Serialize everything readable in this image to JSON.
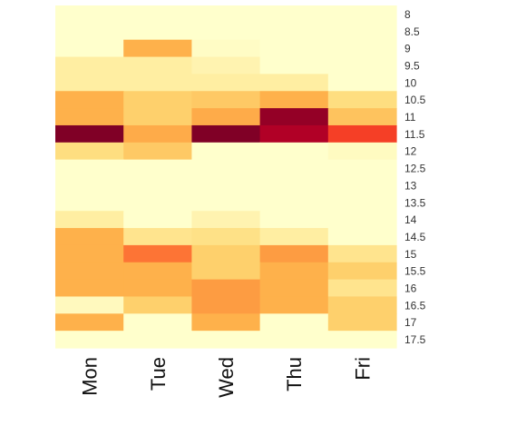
{
  "chart_data": {
    "type": "heatmap",
    "title": "",
    "xlabel": "",
    "ylabel": "",
    "x_categories": [
      "Mon",
      "Tue",
      "Wed",
      "Thu",
      "Fri"
    ],
    "y_categories": [
      "8",
      "8.5",
      "9",
      "9.5",
      "10",
      "10.5",
      "11",
      "11.5",
      "12",
      "12.5",
      "13",
      "13.5",
      "14",
      "14.5",
      "15",
      "15.5",
      "16",
      "16.5",
      "17",
      "17.5"
    ],
    "value_range": [
      0,
      1
    ],
    "colormap": [
      "#ffffcc",
      "#ffeda0",
      "#fed976",
      "#feb24c",
      "#fd8d3c",
      "#fc4e2a",
      "#e31a1c",
      "#bd0026",
      "#800026"
    ],
    "values": [
      [
        0.0,
        0.0,
        0.0,
        0.0,
        0.0
      ],
      [
        0.0,
        0.0,
        0.0,
        0.0,
        0.0
      ],
      [
        0.0,
        0.38,
        0.02,
        0.0,
        0.0
      ],
      [
        0.12,
        0.12,
        0.08,
        0.0,
        0.0
      ],
      [
        0.12,
        0.12,
        0.12,
        0.12,
        0.0
      ],
      [
        0.38,
        0.28,
        0.3,
        0.38,
        0.22
      ],
      [
        0.38,
        0.28,
        0.4,
        0.96,
        0.32
      ],
      [
        1.0,
        0.4,
        1.0,
        0.9,
        0.66
      ],
      [
        0.22,
        0.3,
        0.0,
        0.0,
        0.03
      ],
      [
        0.0,
        0.0,
        0.0,
        0.0,
        0.0
      ],
      [
        0.0,
        0.0,
        0.0,
        0.0,
        0.0
      ],
      [
        0.0,
        0.0,
        0.0,
        0.0,
        0.0
      ],
      [
        0.12,
        0.0,
        0.08,
        0.0,
        0.0
      ],
      [
        0.38,
        0.18,
        0.2,
        0.12,
        0.0
      ],
      [
        0.38,
        0.55,
        0.28,
        0.45,
        0.18
      ],
      [
        0.38,
        0.38,
        0.28,
        0.38,
        0.28
      ],
      [
        0.38,
        0.38,
        0.45,
        0.38,
        0.18
      ],
      [
        0.04,
        0.28,
        0.45,
        0.38,
        0.28
      ],
      [
        0.38,
        0.0,
        0.38,
        0.0,
        0.28
      ],
      [
        0.0,
        0.0,
        0.0,
        0.0,
        0.0
      ]
    ],
    "legend": "none",
    "grid": false
  }
}
